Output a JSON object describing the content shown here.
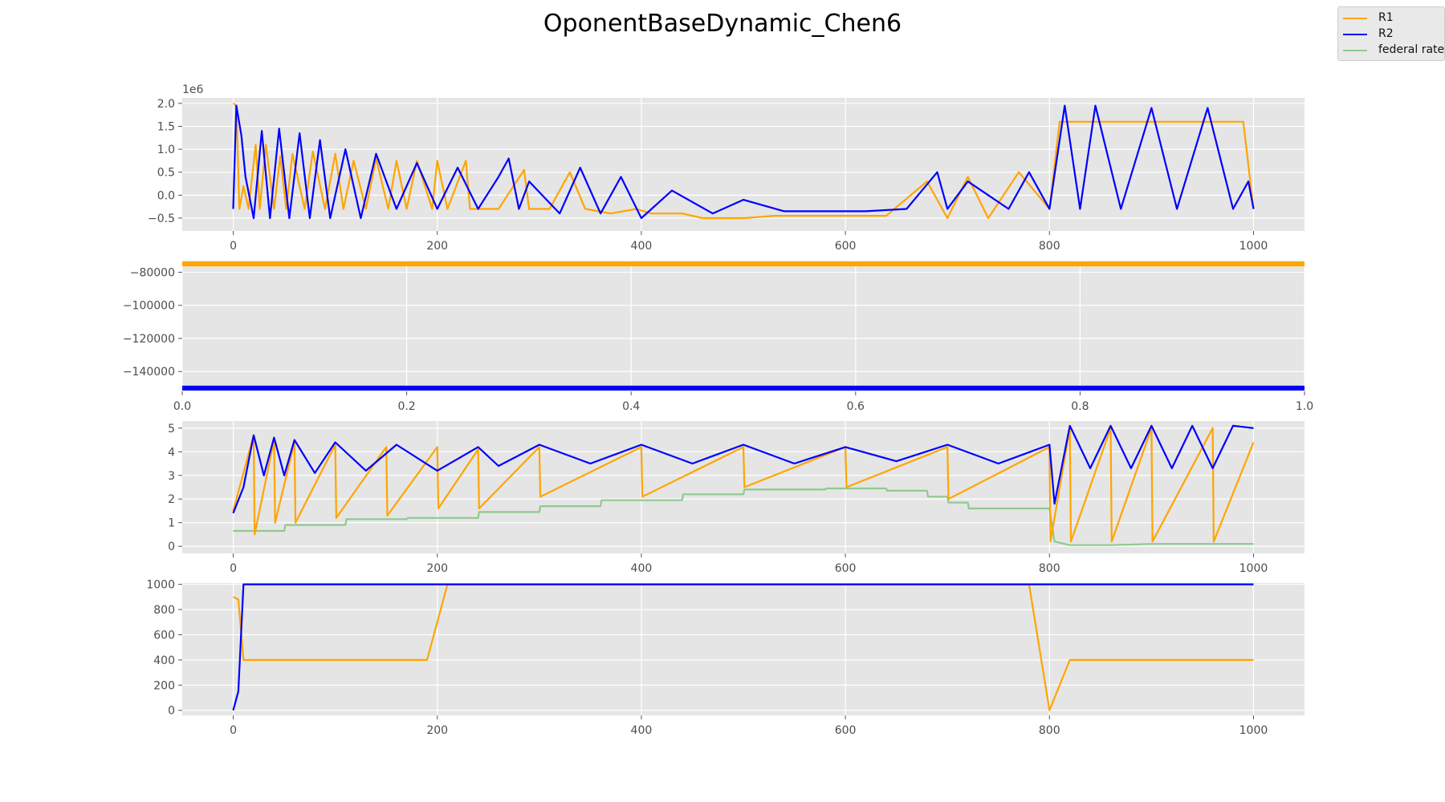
{
  "figure": {
    "title": "OponentBaseDynamic_Chen6"
  },
  "legend": {
    "placement": "top-right",
    "items": [
      {
        "label": "R1",
        "color": "#FFA500"
      },
      {
        "label": "R2",
        "color": "#0000FF"
      },
      {
        "label": "federal rate",
        "color": "#8FC98F"
      }
    ]
  },
  "chart_data": [
    {
      "type": "line",
      "title": "",
      "xlabel": "",
      "ylabel": "",
      "xlim": [
        -50,
        1050
      ],
      "ylim": [
        -0.78,
        2.12
      ],
      "offset_text": "1e6",
      "grid": true,
      "xticks": [
        0,
        200,
        400,
        600,
        800,
        1000
      ],
      "yticks": [
        -0.5,
        0.0,
        0.5,
        1.0,
        1.5,
        2.0
      ],
      "xtick_labels": [
        "0",
        "200",
        "400",
        "600",
        "800",
        "1000"
      ],
      "ytick_labels": [
        "−0.5",
        "0.0",
        "0.5",
        "1.0",
        "1.5",
        "2.0"
      ],
      "series": [
        {
          "name": "R1",
          "color": "#FFA500",
          "x": [
            0,
            3,
            6,
            10,
            15,
            22,
            26,
            32,
            40,
            46,
            52,
            58,
            70,
            78,
            90,
            100,
            108,
            118,
            130,
            140,
            152,
            160,
            170,
            180,
            195,
            200,
            210,
            228,
            232,
            240,
            260,
            285,
            290,
            310,
            330,
            345,
            370,
            395,
            410,
            440,
            460,
            480,
            500,
            530,
            560,
            600,
            640,
            680,
            700,
            720,
            740,
            770,
            800,
            810,
            830,
            850,
            870,
            900,
            930,
            960,
            990,
            1000
          ],
          "y": [
            2.0,
            1.95,
            -0.3,
            0.2,
            -0.3,
            1.1,
            -0.3,
            1.1,
            -0.3,
            0.85,
            -0.3,
            0.9,
            -0.3,
            0.95,
            -0.3,
            0.9,
            -0.3,
            0.75,
            -0.3,
            0.8,
            -0.3,
            0.75,
            -0.3,
            0.75,
            -0.3,
            0.75,
            -0.3,
            0.75,
            -0.3,
            -0.3,
            -0.3,
            0.55,
            -0.3,
            -0.3,
            0.5,
            -0.3,
            -0.4,
            -0.3,
            -0.4,
            -0.4,
            -0.5,
            -0.5,
            -0.5,
            -0.45,
            -0.45,
            -0.45,
            -0.45,
            0.3,
            -0.5,
            0.4,
            -0.5,
            0.5,
            -0.3,
            1.6,
            1.6,
            1.6,
            1.6,
            1.6,
            1.6,
            1.6,
            1.6,
            -0.3
          ]
        },
        {
          "name": "R2",
          "color": "#0000FF",
          "x": [
            0,
            3,
            8,
            12,
            20,
            28,
            36,
            45,
            55,
            65,
            75,
            85,
            95,
            110,
            125,
            140,
            160,
            180,
            200,
            220,
            240,
            260,
            270,
            280,
            290,
            320,
            340,
            360,
            380,
            400,
            430,
            470,
            500,
            540,
            580,
            620,
            660,
            690,
            700,
            720,
            760,
            780,
            800,
            815,
            830,
            845,
            870,
            900,
            925,
            955,
            980,
            995,
            1000
          ],
          "y": [
            -0.3,
            1.95,
            1.3,
            0.4,
            -0.5,
            1.4,
            -0.5,
            1.45,
            -0.5,
            1.35,
            -0.5,
            1.2,
            -0.5,
            1.0,
            -0.5,
            0.9,
            -0.3,
            0.7,
            -0.3,
            0.6,
            -0.3,
            0.4,
            0.8,
            -0.3,
            0.3,
            -0.4,
            0.6,
            -0.4,
            0.4,
            -0.5,
            0.1,
            -0.4,
            -0.1,
            -0.35,
            -0.35,
            -0.35,
            -0.3,
            0.5,
            -0.3,
            0.3,
            -0.3,
            0.5,
            -0.3,
            1.95,
            -0.3,
            1.95,
            -0.3,
            1.9,
            -0.3,
            1.9,
            -0.3,
            0.3,
            -0.3
          ]
        }
      ]
    },
    {
      "type": "line",
      "title": "",
      "xlabel": "",
      "ylabel": "",
      "xlim": [
        0.0,
        1.0
      ],
      "ylim": [
        -152000,
        -73000
      ],
      "grid": true,
      "xticks": [
        0.0,
        0.2,
        0.4,
        0.6,
        0.8,
        1.0
      ],
      "yticks": [
        -140000,
        -120000,
        -100000,
        -80000
      ],
      "xtick_labels": [
        "0.0",
        "0.2",
        "0.4",
        "0.6",
        "0.8",
        "1.0"
      ],
      "ytick_labels": [
        "−140000",
        "−120000",
        "−100000",
        "−80000"
      ],
      "series": [
        {
          "name": "R1",
          "color": "#FFA500",
          "x": [
            0.0,
            1.0
          ],
          "y": [
            -75000,
            -75000
          ]
        },
        {
          "name": "R2",
          "color": "#0000FF",
          "x": [
            0.0,
            1.0
          ],
          "y": [
            -150000,
            -150000
          ]
        }
      ]
    },
    {
      "type": "line",
      "title": "",
      "xlabel": "",
      "ylabel": "",
      "xlim": [
        -50,
        1050
      ],
      "ylim": [
        -0.3,
        5.3
      ],
      "grid": true,
      "xticks": [
        0,
        200,
        400,
        600,
        800,
        1000
      ],
      "yticks": [
        0,
        1,
        2,
        3,
        4,
        5
      ],
      "xtick_labels": [
        "0",
        "200",
        "400",
        "600",
        "800",
        "1000"
      ],
      "ytick_labels": [
        "0",
        "1",
        "2",
        "3",
        "4",
        "5"
      ],
      "series": [
        {
          "name": "federal rate",
          "color": "#8FC98F",
          "x": [
            0,
            50,
            51,
            110,
            111,
            170,
            171,
            240,
            241,
            300,
            301,
            360,
            361,
            440,
            441,
            500,
            501,
            580,
            581,
            640,
            641,
            680,
            681,
            700,
            701,
            720,
            721,
            800,
            805,
            820,
            860,
            900,
            1000
          ],
          "y": [
            0.65,
            0.65,
            0.9,
            0.9,
            1.15,
            1.15,
            1.2,
            1.2,
            1.45,
            1.45,
            1.7,
            1.7,
            1.95,
            1.95,
            2.2,
            2.2,
            2.4,
            2.4,
            2.45,
            2.45,
            2.35,
            2.35,
            2.1,
            2.1,
            1.85,
            1.85,
            1.6,
            1.6,
            0.2,
            0.05,
            0.05,
            0.1,
            0.1
          ]
        },
        {
          "name": "R1",
          "color": "#FFA500",
          "x": [
            0,
            20,
            21,
            40,
            41,
            60,
            61,
            100,
            101,
            150,
            151,
            200,
            201,
            240,
            241,
            300,
            301,
            400,
            401,
            500,
            501,
            600,
            601,
            700,
            701,
            800,
            801,
            820,
            821,
            860,
            861,
            900,
            901,
            960,
            961,
            1000
          ],
          "y": [
            1.5,
            4.7,
            0.5,
            4.5,
            1.0,
            4.4,
            1.0,
            4.3,
            1.2,
            4.2,
            1.3,
            4.2,
            1.6,
            4.1,
            1.6,
            4.2,
            2.1,
            4.2,
            2.1,
            4.2,
            2.5,
            4.2,
            2.5,
            4.2,
            2.0,
            4.2,
            0.2,
            5.0,
            0.2,
            5.0,
            0.2,
            5.0,
            0.2,
            5.0,
            0.2,
            4.4
          ]
        },
        {
          "name": "R2",
          "color": "#0000FF",
          "x": [
            0,
            10,
            20,
            30,
            40,
            50,
            60,
            80,
            100,
            130,
            160,
            200,
            240,
            260,
            300,
            350,
            400,
            450,
            500,
            550,
            600,
            650,
            700,
            750,
            800,
            805,
            820,
            840,
            860,
            880,
            900,
            920,
            940,
            960,
            980,
            1000
          ],
          "y": [
            1.4,
            2.5,
            4.7,
            3.0,
            4.6,
            3.0,
            4.5,
            3.1,
            4.4,
            3.2,
            4.3,
            3.2,
            4.2,
            3.4,
            4.3,
            3.5,
            4.3,
            3.5,
            4.3,
            3.5,
            4.2,
            3.6,
            4.3,
            3.5,
            4.3,
            1.8,
            5.1,
            3.3,
            5.1,
            3.3,
            5.1,
            3.3,
            5.1,
            3.3,
            5.1,
            5.0
          ]
        }
      ]
    },
    {
      "type": "line",
      "title": "",
      "xlabel": "",
      "ylabel": "",
      "xlim": [
        -50,
        1050
      ],
      "ylim": [
        -40,
        1010
      ],
      "grid": true,
      "xticks": [
        0,
        200,
        400,
        600,
        800,
        1000
      ],
      "yticks": [
        0,
        200,
        400,
        600,
        800,
        1000
      ],
      "xtick_labels": [
        "0",
        "200",
        "400",
        "600",
        "800",
        "1000"
      ],
      "ytick_labels": [
        "0",
        "200",
        "400",
        "600",
        "800",
        "1000"
      ],
      "series": [
        {
          "name": "R1",
          "color": "#FFA500",
          "x": [
            0,
            5,
            10,
            30,
            50,
            70,
            90,
            110,
            130,
            150,
            170,
            190,
            210,
            230,
            260,
            300,
            400,
            500,
            580,
            600,
            700,
            780,
            800,
            820,
            860,
            900,
            940,
            980,
            1000
          ],
          "y": [
            900,
            880,
            400,
            400,
            400,
            400,
            400,
            400,
            400,
            400,
            400,
            400,
            1000,
            1000,
            1000,
            1000,
            1000,
            1000,
            1000,
            1000,
            1000,
            1000,
            0,
            400,
            400,
            400,
            400,
            400,
            400
          ]
        },
        {
          "name": "R2",
          "color": "#0000FF",
          "x": [
            0,
            5,
            10,
            1000
          ],
          "y": [
            0,
            150,
            1000,
            1000
          ]
        }
      ]
    }
  ]
}
